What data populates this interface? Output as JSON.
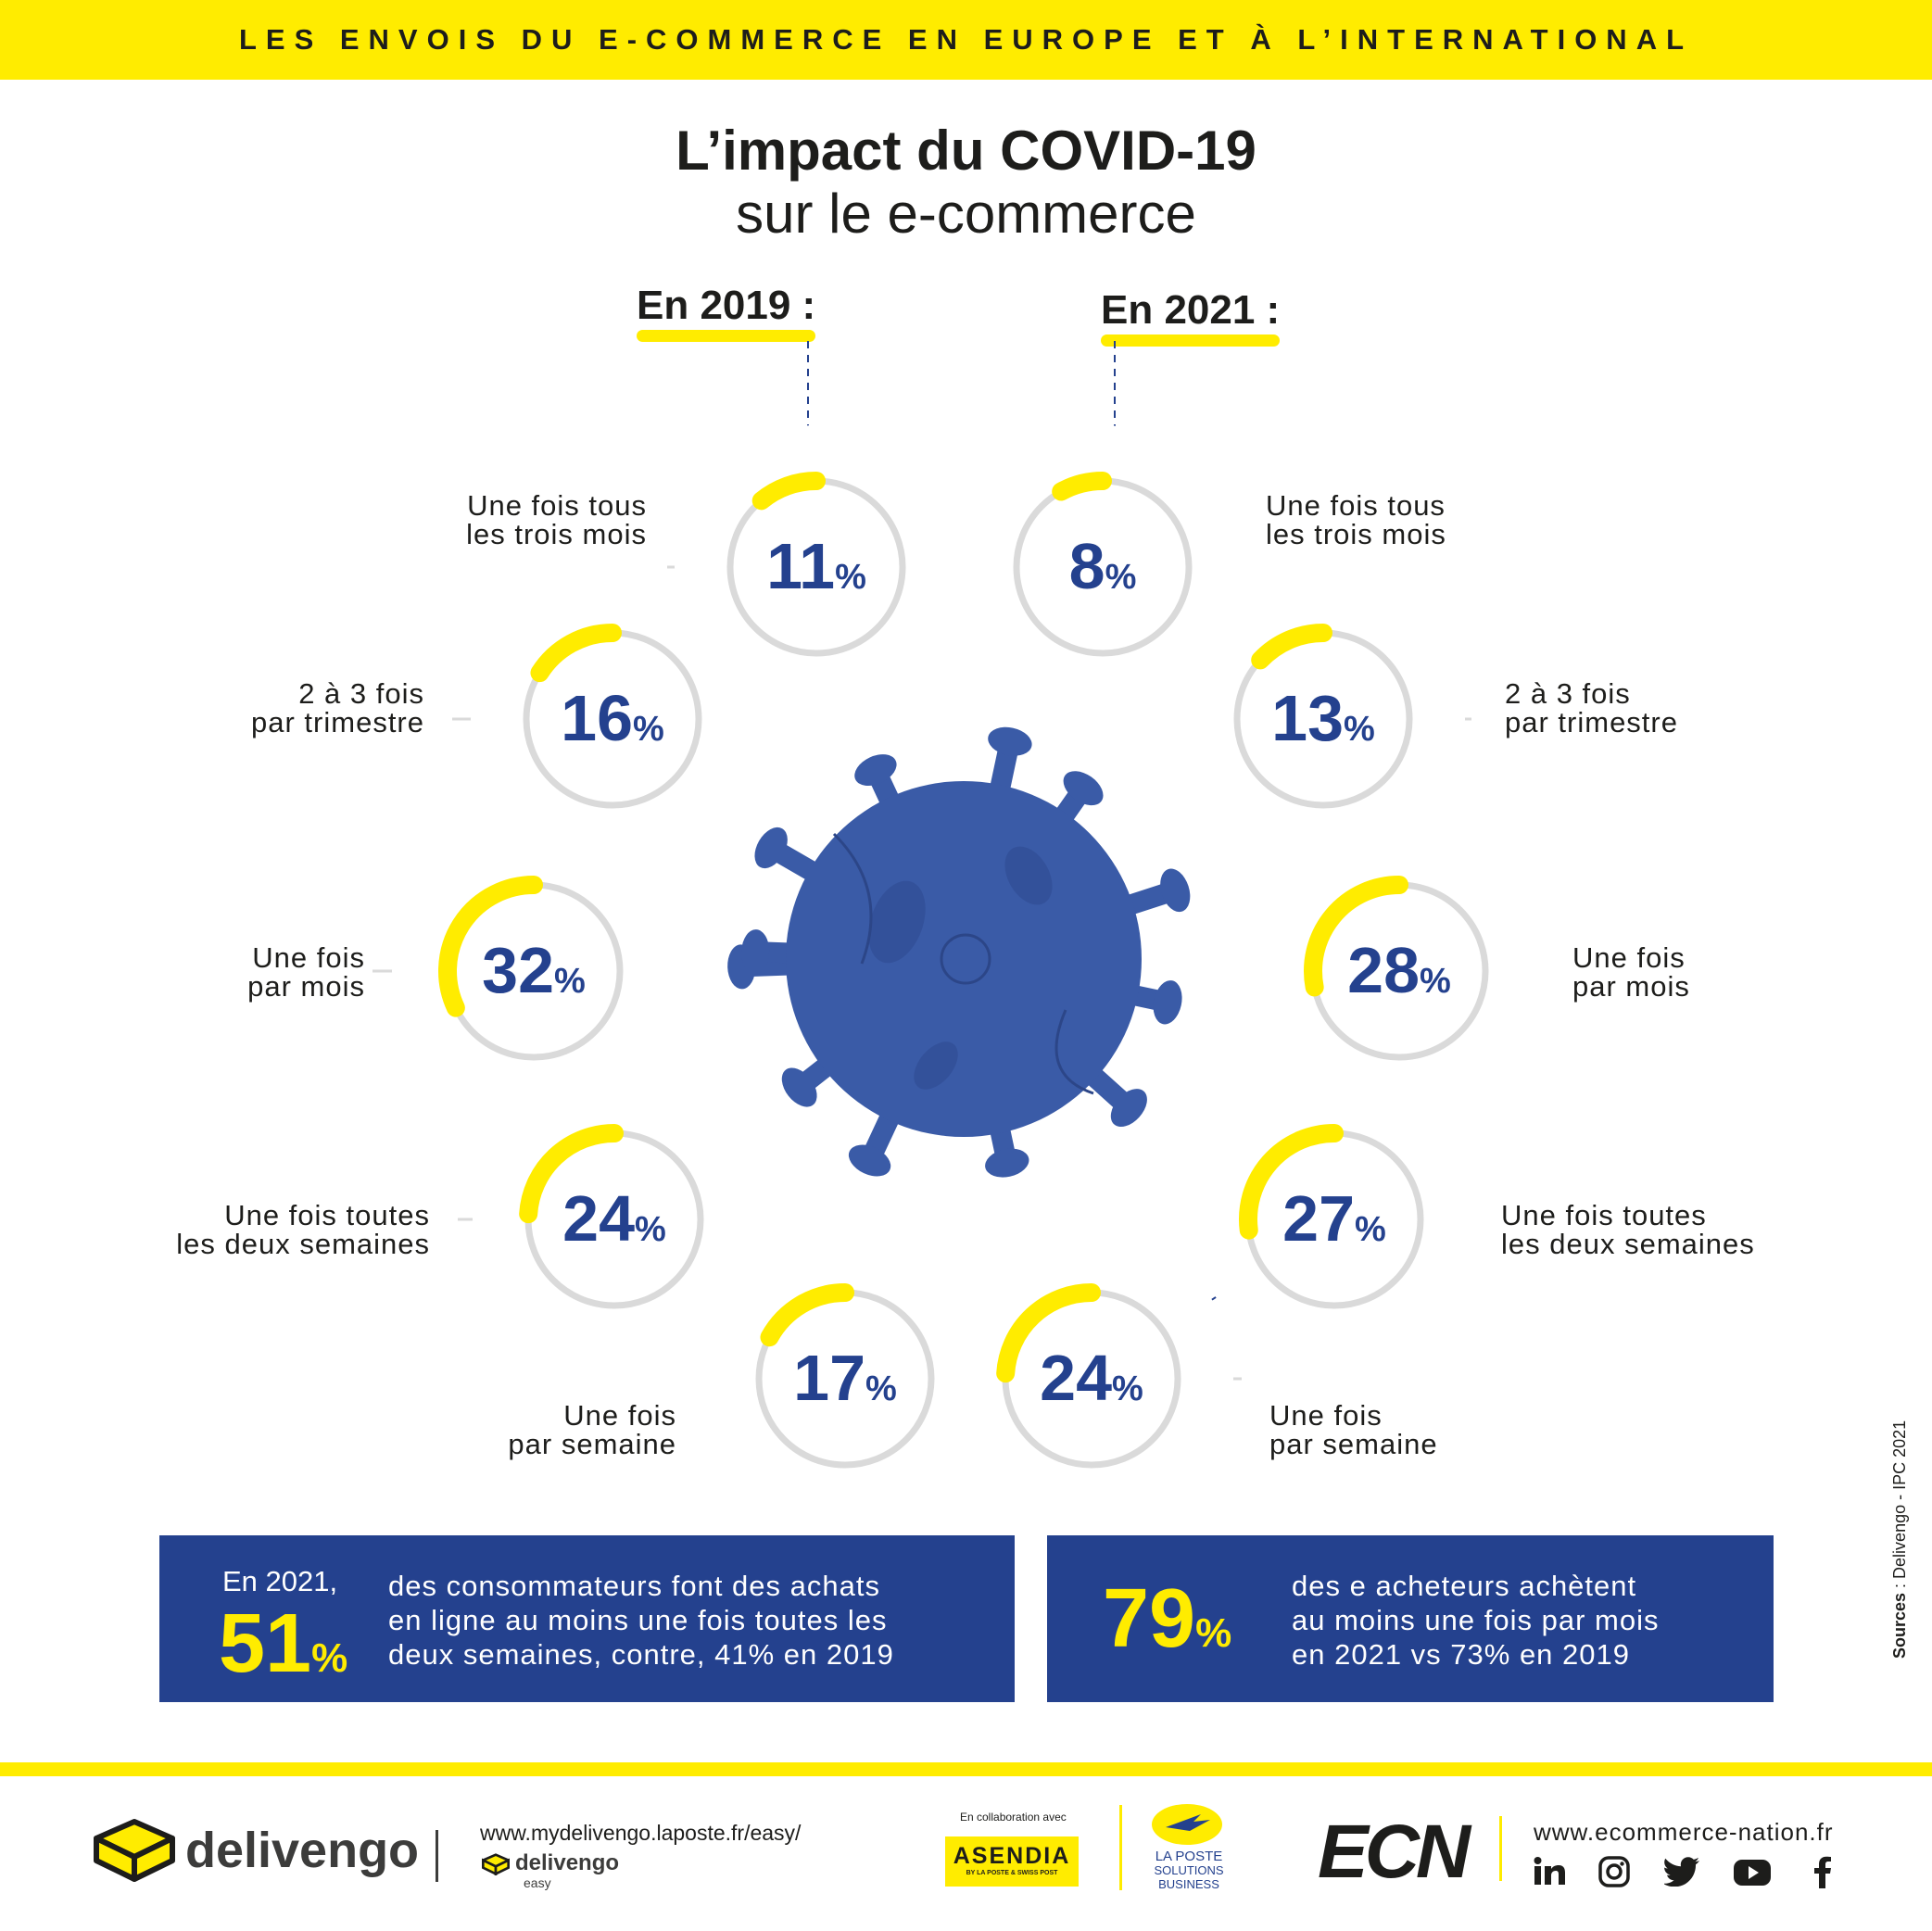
{
  "header": {
    "banner": "LES ENVOIS DU E-COMMERCE EN EUROPE ET À L’INTERNATIONAL"
  },
  "title": {
    "line1": "L’impact du COVID-19",
    "line2": "sur le e-commerce"
  },
  "colors": {
    "accent": "#ffec00",
    "primary": "#24418e",
    "ring": "#dadada",
    "virus": "#3a5ba7"
  },
  "chart_data": {
    "type": "radial-rings",
    "unit": "%",
    "categories": [
      {
        "line1": "Une fois tous",
        "line2": "les trois mois"
      },
      {
        "line1": "2 à 3 fois",
        "line2": "par trimestre"
      },
      {
        "line1": "Une fois",
        "line2": "par mois"
      },
      {
        "line1": "Une fois toutes",
        "line2": "les deux semaines"
      },
      {
        "line1": "Une fois",
        "line2": "par semaine"
      }
    ],
    "series": [
      {
        "name": "En 2019 :",
        "values": [
          11,
          16,
          32,
          24,
          17
        ]
      },
      {
        "name": "En 2021 :",
        "values": [
          8,
          13,
          28,
          27,
          24
        ]
      }
    ]
  },
  "stats": [
    {
      "prefix": "En 2021,",
      "value": "51",
      "unit": "%",
      "lines": [
        "des consommateurs font des achats",
        "en ligne au moins une fois toutes les",
        "deux semaines, contre, 41% en 2019"
      ]
    },
    {
      "prefix": "",
      "value": "79",
      "unit": "%",
      "lines": [
        "des e acheteurs achètent",
        "au moins une fois par mois",
        "en 2021 vs 73% en 2019"
      ]
    }
  ],
  "source": {
    "label": "Sources",
    "text": " : Delivengo - IPC 2021"
  },
  "footer": {
    "delivengo": "delivengo",
    "url1": "www.mydelivengo.laposte.fr/easy/",
    "delivengo_small": "delivengo",
    "easy": "easy",
    "collab": "En collaboration avec",
    "asendia": "ASENDIA",
    "asendia_sub": "BY LA POSTE & SWISS POST",
    "laposte1": "LA POSTE",
    "laposte2": "SOLUTIONS",
    "laposte3": "BUSINESS",
    "ecn": "ECN",
    "url2": "www.ecommerce-nation.fr",
    "social": [
      "linkedin-icon",
      "instagram-icon",
      "twitter-icon",
      "youtube-icon",
      "facebook-icon"
    ]
  }
}
